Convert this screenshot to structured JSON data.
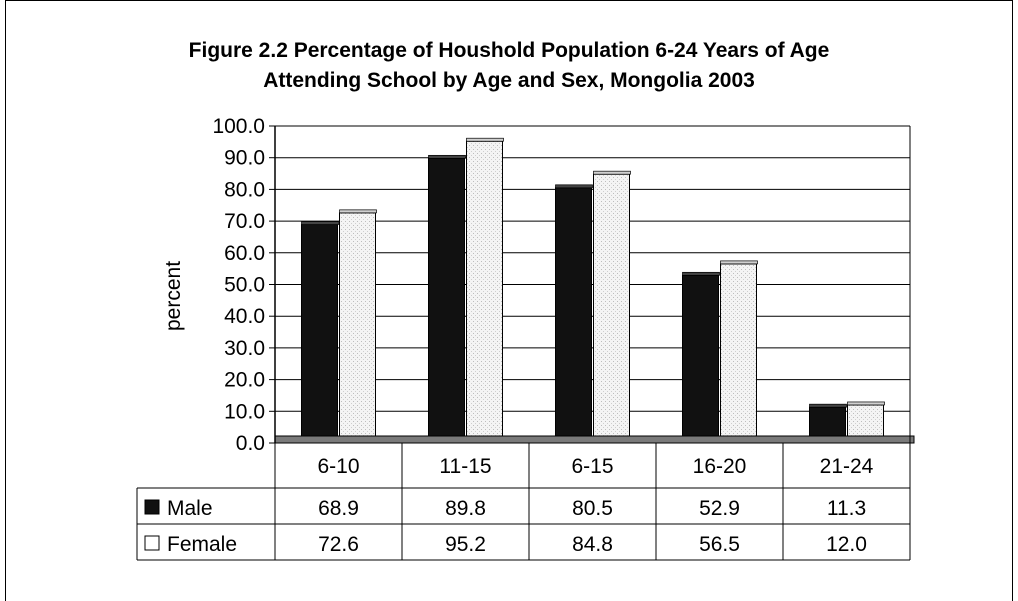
{
  "chart_data": {
    "type": "bar",
    "title_lines": [
      "Figure 2.2 Percentage of Houshold Population 6-24 Years of Age",
      "Attending School by Age and Sex, Mongolia 2003"
    ],
    "ylabel": "percent",
    "xlabel": "",
    "ylim": [
      0,
      100
    ],
    "yticks": [
      "0.0",
      "10.0",
      "20.0",
      "30.0",
      "40.0",
      "50.0",
      "60.0",
      "70.0",
      "80.0",
      "90.0",
      "100.0"
    ],
    "grid": true,
    "categories": [
      "6-10",
      "11-15",
      "6-15",
      "16-20",
      "21-24"
    ],
    "series": [
      {
        "name": "Male",
        "values": [
          68.9,
          89.8,
          80.5,
          52.9,
          11.3
        ],
        "color": "#111111",
        "labels": [
          "68.9",
          "89.8",
          "80.5",
          "52.9",
          "11.3"
        ]
      },
      {
        "name": "Female",
        "values": [
          72.6,
          95.2,
          84.8,
          56.5,
          12.0
        ],
        "color": "#f2f2f2",
        "labels": [
          "72.6",
          "95.2",
          "84.8",
          "56.5",
          "12.0"
        ]
      }
    ],
    "legend": "data-table"
  }
}
